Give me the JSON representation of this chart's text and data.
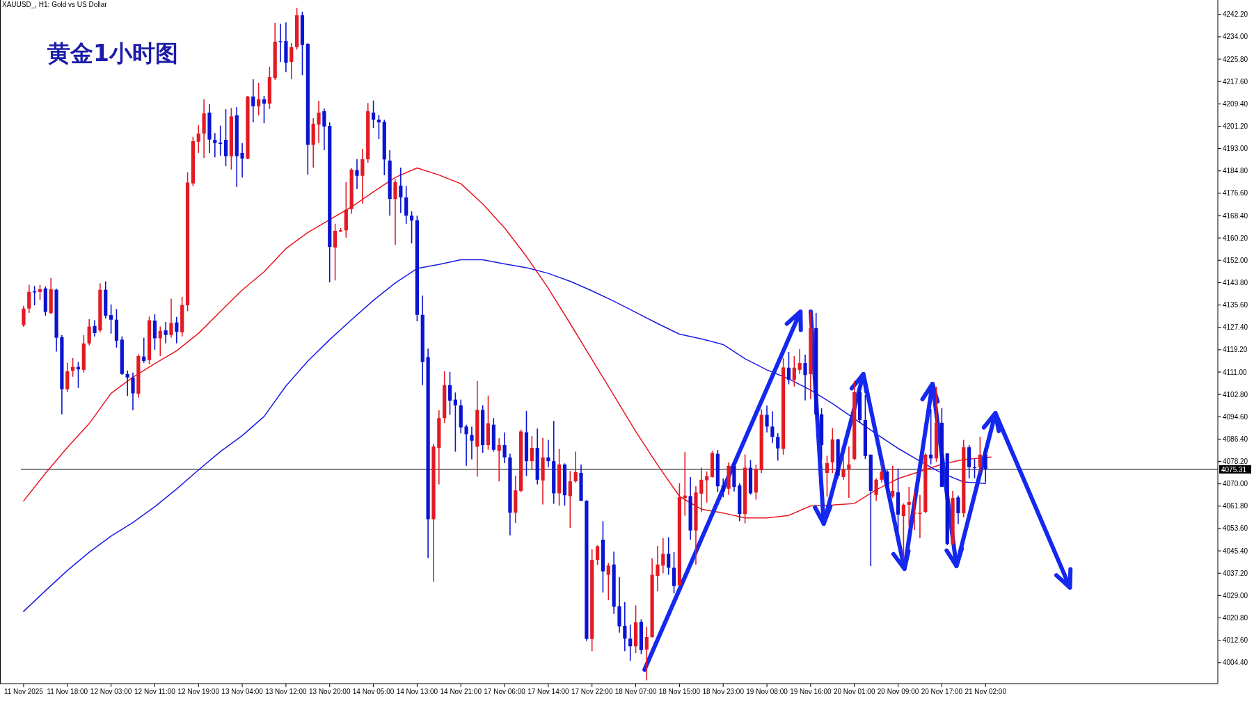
{
  "chart_data": {
    "type": "candlestick",
    "title": "黄金1小时图",
    "subtitle": "XAUUSD_, H1: Gold vs US Dollar",
    "categories": [
      "11 Nov 2025",
      null,
      null,
      null,
      null,
      null,
      null,
      null,
      "11 Nov 18:00",
      null,
      null,
      null,
      null,
      null,
      null,
      null,
      "12 Nov 03:00",
      null,
      null,
      null,
      null,
      null,
      null,
      null,
      "12 Nov 11:00",
      null,
      null,
      null,
      null,
      null,
      null,
      null,
      "12 Nov 19:00",
      null,
      null,
      null,
      null,
      null,
      null,
      null,
      "13 Nov 04:00",
      null,
      null,
      null,
      null,
      null,
      null,
      null,
      "13 Nov 12:00",
      null,
      null,
      null,
      null,
      null,
      null,
      null,
      "13 Nov 20:00",
      null,
      null,
      null,
      null,
      null,
      null,
      null,
      "14 Nov 05:00",
      null,
      null,
      null,
      null,
      null,
      null,
      null,
      "14 Nov 13:00",
      null,
      null,
      null,
      null,
      null,
      null,
      null,
      "14 Nov 21:00",
      null,
      null,
      null,
      null,
      null,
      null,
      null,
      "17 Nov 06:00",
      null,
      null,
      null,
      null,
      null,
      null,
      null,
      "17 Nov 14:00",
      null,
      null,
      null,
      null,
      null,
      null,
      null,
      "17 Nov 22:00",
      null,
      null,
      null,
      null,
      null,
      null,
      null,
      "18 Nov 07:00",
      null,
      null,
      null,
      null,
      null,
      null,
      null,
      "18 Nov 15:00",
      null,
      null,
      null,
      null,
      null,
      null,
      null,
      "18 Nov 23:00",
      null,
      null,
      null,
      null,
      null,
      null,
      null,
      "19 Nov 08:00",
      null,
      null,
      null,
      null,
      null,
      null,
      null,
      "19 Nov 16:00",
      null,
      null,
      null,
      null,
      null,
      null,
      null,
      "20 Nov 01:00",
      null,
      null,
      null,
      null,
      null,
      null,
      null,
      "20 Nov 09:00",
      null,
      null,
      null,
      null,
      null,
      null,
      null,
      "20 Nov 17:00",
      null,
      null,
      null,
      null,
      null,
      null,
      null,
      "21 Nov 02:00",
      null,
      null,
      null,
      null,
      null,
      null,
      null,
      null,
      null,
      null,
      null,
      null,
      null,
      null,
      null,
      null,
      null,
      null,
      null,
      null,
      null,
      null,
      null,
      null,
      null,
      null,
      null,
      null,
      null,
      null,
      null,
      null,
      null,
      null,
      null,
      null,
      null,
      null,
      null,
      null,
      null,
      null
    ],
    "ohlc": [
      [
        4128.2,
        4135.3,
        4127.6,
        4134.3
      ],
      [
        4134.3,
        4143.0,
        4132.7,
        4140.4
      ],
      [
        4140.6,
        4142.6,
        4135.5,
        4140.2
      ],
      [
        4140.4,
        4143.0,
        4137.5,
        4141.4
      ],
      [
        4141.7,
        4142.4,
        4131.7,
        4133.1
      ],
      [
        4132.7,
        4145.5,
        4132.2,
        4141.4
      ],
      [
        4141.2,
        4141.6,
        4118.5,
        4123.6
      ],
      [
        4123.8,
        4124.6,
        4095.5,
        4104.7
      ],
      [
        4104.7,
        4114.4,
        4103.7,
        4111.3
      ],
      [
        4111.5,
        4116.1,
        4109.3,
        4112.9
      ],
      [
        4112.9,
        4114.7,
        4105.2,
        4112.0
      ],
      [
        4111.8,
        4124.6,
        4110.8,
        4121.5
      ],
      [
        4121.5,
        4130.4,
        4120.8,
        4127.7
      ],
      [
        4127.9,
        4130.0,
        4124.1,
        4125.3
      ],
      [
        4126.3,
        4143.5,
        4125.6,
        4141.2
      ],
      [
        4141.2,
        4144.3,
        4130.7,
        4131.7
      ],
      [
        4131.9,
        4135.8,
        4125.1,
        4130.2
      ],
      [
        4130.2,
        4134.1,
        4120.0,
        4122.5
      ],
      [
        4122.9,
        4124.1,
        4110.0,
        4110.3
      ],
      [
        4110.3,
        4111.6,
        4102.2,
        4109.0
      ],
      [
        4109.0,
        4110.8,
        4097.0,
        4103.2
      ],
      [
        4103.0,
        4117.5,
        4101.6,
        4116.9
      ],
      [
        4116.7,
        4123.6,
        4114.4,
        4115.1
      ],
      [
        4115.4,
        4131.4,
        4113.9,
        4130.0
      ],
      [
        4129.9,
        4132.2,
        4119.2,
        4123.4
      ],
      [
        4123.4,
        4127.7,
        4116.9,
        4126.1
      ],
      [
        4126.3,
        4129.4,
        4121.5,
        4124.6
      ],
      [
        4124.6,
        4137.9,
        4123.6,
        4129.0
      ],
      [
        4129.2,
        4131.2,
        4121.5,
        4125.8
      ],
      [
        4125.6,
        4138.6,
        4124.1,
        4135.6
      ],
      [
        4135.5,
        4184.3,
        4133.3,
        4180.5
      ],
      [
        4180.2,
        4197.3,
        4179.2,
        4195.7
      ],
      [
        4195.5,
        4201.6,
        4191.4,
        4198.5
      ],
      [
        4198.5,
        4211.0,
        4189.6,
        4205.9
      ],
      [
        4206.2,
        4209.3,
        4191.4,
        4196.3
      ],
      [
        4196.2,
        4198.7,
        4189.8,
        4195.0
      ],
      [
        4195.2,
        4201.4,
        4190.4,
        4194.7
      ],
      [
        4196.2,
        4207.4,
        4186.5,
        4190.2
      ],
      [
        4190.2,
        4207.9,
        4185.3,
        4204.8
      ],
      [
        4205.2,
        4208.2,
        4178.9,
        4190.2
      ],
      [
        4191.4,
        4195.0,
        4182.4,
        4189.3
      ],
      [
        4189.3,
        4212.3,
        4189.1,
        4212.1
      ],
      [
        4212.1,
        4218.4,
        4202.6,
        4208.5
      ],
      [
        4208.5,
        4217.1,
        4205.2,
        4211.1
      ],
      [
        4211.1,
        4212.3,
        4202.3,
        4209.5
      ],
      [
        4209.5,
        4223.0,
        4207.5,
        4219.2
      ],
      [
        4218.9,
        4239.1,
        4218.2,
        4232.2
      ],
      [
        4232.4,
        4238.8,
        4224.8,
        4232.2
      ],
      [
        4232.4,
        4239.3,
        4221.0,
        4224.5
      ],
      [
        4224.8,
        4231.7,
        4218.4,
        4230.2
      ],
      [
        4230.2,
        4244.6,
        4229.3,
        4241.9
      ],
      [
        4241.9,
        4243.2,
        4219.9,
        4231.0
      ],
      [
        4231.4,
        4231.7,
        4183.4,
        4194.4
      ],
      [
        4194.4,
        4204.1,
        4186.0,
        4202.1
      ],
      [
        4201.8,
        4210.5,
        4195.0,
        4206.2
      ],
      [
        4206.7,
        4207.7,
        4192.4,
        4201.1
      ],
      [
        4201.3,
        4202.6,
        4143.9,
        4156.9
      ],
      [
        4156.7,
        4165.4,
        4144.6,
        4162.8
      ],
      [
        4162.6,
        4163.8,
        4162.3,
        4163.0
      ],
      [
        4163.0,
        4180.7,
        4160.3,
        4170.5
      ],
      [
        4170.8,
        4185.8,
        4169.1,
        4185.3
      ],
      [
        4185.1,
        4189.1,
        4178.1,
        4183.0
      ],
      [
        4183.0,
        4192.9,
        4172.8,
        4189.1
      ],
      [
        4189.1,
        4209.7,
        4187.8,
        4206.7
      ],
      [
        4206.2,
        4210.6,
        4200.6,
        4203.6
      ],
      [
        4203.6,
        4205.2,
        4196.5,
        4202.6
      ],
      [
        4202.8,
        4203.6,
        4183.2,
        4189.0
      ],
      [
        4188.6,
        4192.4,
        4168.4,
        4174.5
      ],
      [
        4174.5,
        4181.7,
        4157.7,
        4180.7
      ],
      [
        4179.4,
        4186.0,
        4169.4,
        4175.1
      ],
      [
        4175.1,
        4179.3,
        4165.4,
        4168.4
      ],
      [
        4168.4,
        4170.0,
        4158.2,
        4166.6
      ],
      [
        4166.7,
        4168.4,
        4129.6,
        4132.0
      ],
      [
        4132.0,
        4139.1,
        4106.2,
        4114.7
      ],
      [
        4116.5,
        4119.6,
        4042.8,
        4057.0
      ],
      [
        4057.0,
        4084.6,
        4034.1,
        4083.7
      ],
      [
        4083.2,
        4097.0,
        4069.8,
        4094.1
      ],
      [
        4094.1,
        4111.3,
        4092.4,
        4106.2
      ],
      [
        4106.2,
        4111.1,
        4095.3,
        4100.5
      ],
      [
        4100.9,
        4103.5,
        4081.8,
        4098.8
      ],
      [
        4098.8,
        4100.9,
        4088.5,
        4090.7
      ],
      [
        4091.0,
        4091.7,
        4076.6,
        4088.2
      ],
      [
        4087.9,
        4091.0,
        4079.0,
        4085.8
      ],
      [
        4083.6,
        4107.7,
        4072.6,
        4097.1
      ],
      [
        4097.1,
        4098.8,
        4081.4,
        4084.2
      ],
      [
        4084.2,
        4102.4,
        4082.5,
        4092.2
      ],
      [
        4091.7,
        4094.1,
        4081.8,
        4082.5
      ],
      [
        4082.1,
        4086.8,
        4070.9,
        4084.2
      ],
      [
        4084.2,
        4088.9,
        4077.6,
        4079.7
      ],
      [
        4079.7,
        4081.1,
        4051.1,
        4059.4
      ],
      [
        4059.4,
        4073.0,
        4055.6,
        4067.6
      ],
      [
        4067.4,
        4089.9,
        4066.9,
        4089.2
      ],
      [
        4088.9,
        4096.7,
        4072.9,
        4078.3
      ],
      [
        4078.3,
        4087.5,
        4075.4,
        4083.2
      ],
      [
        4083.2,
        4090.3,
        4069.8,
        4071.5
      ],
      [
        4071.2,
        4086.8,
        4062.4,
        4079.7
      ],
      [
        4079.7,
        4086.1,
        4076.1,
        4078.3
      ],
      [
        4078.3,
        4093.1,
        4062.7,
        4066.5
      ],
      [
        4066.5,
        4082.8,
        4062.0,
        4077.1
      ],
      [
        4077.1,
        4077.5,
        4062.0,
        4065.8
      ],
      [
        4065.5,
        4074.7,
        4053.8,
        4070.9
      ],
      [
        4070.9,
        4081.8,
        4070.5,
        4074.3
      ],
      [
        4074.0,
        4077.1,
        4063.7,
        4063.8
      ],
      [
        4063.8,
        4064.0,
        4012.4,
        4013.1
      ],
      [
        4013.1,
        4046.0,
        4008.6,
        4042.1
      ],
      [
        4042.1,
        4047.4,
        4040.3,
        4047.1
      ],
      [
        4049.5,
        4056.3,
        4030.1,
        4037.9
      ],
      [
        4036.6,
        4041.0,
        4027.3,
        4040.0
      ],
      [
        4040.4,
        4045.1,
        4022.3,
        4024.9
      ],
      [
        4025.1,
        4035.8,
        4015.4,
        4017.7
      ],
      [
        4017.9,
        4026.6,
        4008.6,
        4013.2
      ],
      [
        4013.2,
        4018.3,
        4005.1,
        4010.4
      ],
      [
        4010.4,
        4025.4,
        4007.9,
        4019.2
      ],
      [
        4019.4,
        4020.3,
        4007.5,
        4009.0
      ],
      [
        4009.2,
        4017.5,
        3997.9,
        4013.8
      ],
      [
        4013.8,
        4042.7,
        4013.6,
        4036.6
      ],
      [
        4036.2,
        4047.2,
        4030.6,
        4040.4
      ],
      [
        4040.0,
        4050.1,
        4037.2,
        4044.3
      ],
      [
        4044.3,
        4050.4,
        4036.6,
        4039.2
      ],
      [
        4039.2,
        4044.9,
        4029.8,
        4032.5
      ],
      [
        4032.8,
        4070.2,
        4032.6,
        4065.1
      ],
      [
        4064.8,
        4081.7,
        4058.3,
        4065.7
      ],
      [
        4065.5,
        4072.5,
        4049.5,
        4052.9
      ],
      [
        4052.9,
        4069.1,
        4040.4,
        4066.8
      ],
      [
        4066.4,
        4075.9,
        4059.6,
        4071.5
      ],
      [
        4071.3,
        4074.5,
        4063.1,
        4072.8
      ],
      [
        4072.5,
        4082.1,
        4072.3,
        4081.3
      ],
      [
        4081.0,
        4082.4,
        4067.0,
        4069.1
      ],
      [
        4069.4,
        4071.9,
        4065.1,
        4067.2
      ],
      [
        4068.2,
        4077.9,
        4066.0,
        4076.6
      ],
      [
        4076.6,
        4077.9,
        4067.2,
        4068.9
      ],
      [
        4069.4,
        4070.2,
        4056.3,
        4058.9
      ],
      [
        4058.9,
        4080.8,
        4055.5,
        4075.9
      ],
      [
        4075.9,
        4078.7,
        4066.0,
        4066.5
      ],
      [
        4066.8,
        4077.0,
        4064.2,
        4075.5
      ],
      [
        4075.0,
        4097.4,
        4074.0,
        4095.3
      ],
      [
        4095.3,
        4098.7,
        4088.9,
        4091.0
      ],
      [
        4091.0,
        4096.6,
        4084.9,
        4087.2
      ],
      [
        4087.2,
        4088.6,
        4078.5,
        4083.0
      ],
      [
        4082.8,
        4116.1,
        4080.7,
        4112.7
      ],
      [
        4112.6,
        4118.4,
        4106.5,
        4108.2
      ],
      [
        4108.2,
        4116.9,
        4105.7,
        4112.6
      ],
      [
        4111.8,
        4119.4,
        4110.3,
        4114.3
      ],
      [
        4114.3,
        4117.4,
        4100.6,
        4109.9
      ],
      [
        4110.2,
        4133.2,
        4101.1,
        4127.1
      ],
      [
        4127.1,
        4132.7,
        4093.4,
        4095.5
      ],
      [
        4095.5,
        4097.7,
        4079.1,
        4084.2
      ],
      [
        4074.0,
        4080.3,
        4065.3,
        4077.6
      ],
      [
        4077.9,
        4090.4,
        4074.0,
        4086.3
      ],
      [
        4086.3,
        4086.5,
        4072.0,
        4073.0
      ],
      [
        4072.5,
        4080.2,
        4071.5,
        4075.3
      ],
      [
        4075.3,
        4083.7,
        4064.8,
        4077.1
      ],
      [
        4079.1,
        4107.7,
        4078.6,
        4103.6
      ],
      [
        4103.6,
        4105.7,
        4092.4,
        4093.4
      ],
      [
        4093.4,
        4102.6,
        4079.1,
        4080.2
      ],
      [
        4080.7,
        4080.7,
        4039.8,
        4067.4
      ],
      [
        4065.9,
        4072.0,
        4063.8,
        4071.5
      ],
      [
        4071.5,
        4078.1,
        4070.5,
        4074.5
      ],
      [
        4074.5,
        4075.0,
        4065.9,
        4068.9
      ],
      [
        4065.4,
        4076.6,
        4064.8,
        4067.4
      ],
      [
        4066.9,
        4075.6,
        4052.6,
        4058.7
      ],
      [
        4058.2,
        4062.8,
        4042.4,
        4062.3
      ],
      [
        4062.3,
        4068.9,
        4054.6,
        4063.3
      ],
      [
        4059.0,
        4066.9,
        4053.1,
        4059.4
      ],
      [
        4059.0,
        4065.9,
        4050.0,
        4059.4
      ],
      [
        4059.7,
        4081.2,
        4059.2,
        4080.7
      ],
      [
        4080.7,
        4097.5,
        4077.1,
        4079.3
      ],
      [
        4079.3,
        4105.7,
        4078.1,
        4092.4
      ],
      [
        4092.4,
        4097.7,
        4068.9,
        4068.9
      ],
      [
        4081.2,
        4081.2,
        4047.5,
        4048.0
      ],
      [
        4048.0,
        4067.4,
        4047.5,
        4064.8
      ],
      [
        4065.0,
        4065.7,
        4055.2,
        4059.2
      ],
      [
        4059.2,
        4086.1,
        4057.7,
        4083.4
      ],
      [
        4083.4,
        4084.2,
        4072.0,
        4076.1
      ],
      [
        4076.1,
        4079.1,
        4072.0,
        4075.9
      ],
      [
        4076.1,
        4087.3,
        4074.0,
        4080.7
      ],
      [
        4080.7,
        4083.2,
        4070.5,
        4075.3
      ],
      null,
      null,
      null,
      null,
      null,
      null,
      null,
      null,
      null,
      null,
      null,
      null,
      null,
      null,
      null,
      null,
      null,
      null,
      null,
      null,
      null,
      null,
      null,
      null,
      null,
      null,
      null,
      null,
      null,
      null,
      null,
      null,
      null,
      null,
      null,
      null,
      null,
      null,
      null,
      null,
      null,
      null
    ],
    "colors": [
      "#e31a23",
      "#e31a23",
      "#0a14d2",
      "#e31a23",
      "#0a14d2",
      "#e31a23",
      "#0a14d2",
      "#0a14d2",
      "#e31a23",
      "#e31a23",
      "#0a14d2",
      "#e31a23",
      "#e31a23",
      "#0a14d2",
      "#e31a23",
      "#0a14d2",
      "#0a14d2",
      "#0a14d2",
      "#0a14d2",
      "#0a14d2",
      "#0a14d2",
      "#e31a23",
      "#0a14d2",
      "#e31a23",
      "#0a14d2",
      "#e31a23",
      "#0a14d2",
      "#e31a23",
      "#0a14d2",
      "#e31a23",
      "#e31a23",
      "#e31a23",
      "#e31a23",
      "#e31a23",
      "#0a14d2",
      "#0a14d2",
      "#0a14d2",
      "#0a14d2",
      "#e31a23",
      "#0a14d2",
      "#0a14d2",
      "#e31a23",
      "#0a14d2",
      "#e31a23",
      "#0a14d2",
      "#e31a23",
      "#e31a23",
      "#0a14d2",
      "#0a14d2",
      "#e31a23",
      "#e31a23",
      "#0a14d2",
      "#0a14d2",
      "#e31a23",
      "#e31a23",
      "#0a14d2",
      "#0a14d2",
      "#e31a23",
      "#e31a23",
      "#e31a23",
      "#e31a23",
      "#0a14d2",
      "#e31a23",
      "#e31a23",
      "#0a14d2",
      "#0a14d2",
      "#0a14d2",
      "#0a14d2",
      "#e31a23",
      "#0a14d2",
      "#0a14d2",
      "#0a14d2",
      "#0a14d2",
      "#0a14d2",
      "#0a14d2",
      "#e31a23",
      "#e31a23",
      "#e31a23",
      "#0a14d2",
      "#0a14d2",
      "#0a14d2",
      "#0a14d2",
      "#0a14d2",
      "#e31a23",
      "#0a14d2",
      "#e31a23",
      "#0a14d2",
      "#e31a23",
      "#0a14d2",
      "#0a14d2",
      "#e31a23",
      "#e31a23",
      "#0a14d2",
      "#e31a23",
      "#0a14d2",
      "#e31a23",
      "#0a14d2",
      "#0a14d2",
      "#e31a23",
      "#0a14d2",
      "#e31a23",
      "#e31a23",
      "#0a14d2",
      "#0a14d2",
      "#e31a23",
      "#e31a23",
      "#0a14d2",
      "#e31a23",
      "#0a14d2",
      "#0a14d2",
      "#0a14d2",
      "#0a14d2",
      "#e31a23",
      "#0a14d2",
      "#e31a23",
      "#e31a23",
      "#e31a23",
      "#e31a23",
      "#0a14d2",
      "#0a14d2",
      "#e31a23",
      "#e31a23",
      "#0a14d2",
      "#e31a23",
      "#e31a23",
      "#e31a23",
      "#e31a23",
      "#0a14d2",
      "#0a14d2",
      "#e31a23",
      "#0a14d2",
      "#0a14d2",
      "#e31a23",
      "#0a14d2",
      "#e31a23",
      "#e31a23",
      "#0a14d2",
      "#0a14d2",
      "#0a14d2",
      "#e31a23",
      "#0a14d2",
      "#e31a23",
      "#e31a23",
      "#0a14d2",
      "#e31a23",
      "#0a14d2",
      "#0a14d2",
      "#e31a23",
      "#e31a23",
      "#0a14d2",
      "#e31a23",
      "#e31a23",
      "#e31a23",
      "#0a14d2",
      "#0a14d2",
      "#0a14d2",
      "#e31a23",
      "#e31a23",
      "#0a14d2",
      "#e31a23",
      "#0a14d2",
      "#e31a23",
      "#e31a23",
      "#e31a23",
      "#e31a23",
      "#e31a23",
      "#0a14d2",
      "#e31a23",
      "#0a14d2",
      "#0a14d2",
      "#e31a23",
      "#0a14d2",
      "#e31a23",
      "#0a14d2",
      "#0a14d2",
      "#e31a23",
      "#0a14d2",
      null,
      null,
      null,
      null,
      null,
      null,
      null,
      null,
      null,
      null,
      null,
      null,
      null,
      null,
      null,
      null,
      null,
      null,
      null,
      null,
      null,
      null,
      null,
      null,
      null,
      null,
      null,
      null,
      null,
      null,
      null,
      null,
      null,
      null,
      null,
      null,
      null,
      null,
      null,
      null,
      null,
      null
    ],
    "series": [
      {
        "type": "line",
        "color": "#e8141e",
        "values": [
          4063.7,
          null,
          null,
          null,
          4073.9,
          null,
          null,
          null,
          4083.3,
          null,
          null,
          null,
          4092.1,
          null,
          null,
          null,
          4103.2,
          null,
          null,
          null,
          4109.1,
          null,
          null,
          null,
          4114.1,
          null,
          null,
          null,
          4118.8,
          null,
          null,
          null,
          4125.2,
          null,
          null,
          null,
          4133.2,
          null,
          null,
          null,
          4141.1,
          null,
          null,
          null,
          4147.8,
          null,
          null,
          null,
          4156.3,
          null,
          null,
          null,
          4162.2,
          null,
          null,
          null,
          4166.9,
          null,
          null,
          null,
          4171.6,
          null,
          null,
          null,
          4177.1,
          null,
          null,
          null,
          4182.4,
          null,
          null,
          null,
          4185.9,
          null,
          null,
          null,
          4183.3,
          null,
          null,
          null,
          4180.1,
          null,
          null,
          null,
          4172.7,
          null,
          null,
          null,
          4163.9,
          null,
          null,
          null,
          4153.4,
          null,
          null,
          null,
          4141.7,
          null,
          null,
          null,
          4128.8,
          null,
          null,
          null,
          4115.6,
          null,
          null,
          null,
          4102.4,
          null,
          null,
          null,
          4089.2,
          null,
          null,
          null,
          4076.9,
          null,
          null,
          null,
          4065.4,
          null,
          null,
          null,
          4060.7,
          null,
          null,
          null,
          4059.3,
          null,
          null,
          null,
          4057.5,
          null,
          null,
          null,
          4057.5,
          null,
          null,
          null,
          4058.4,
          null,
          null,
          null,
          4061.9,
          null,
          null,
          null,
          4062.2,
          null,
          null,
          null,
          4062.8,
          null,
          null,
          null,
          4067.8,
          null,
          null,
          null,
          4071.9,
          null,
          null,
          null,
          4074.5,
          null,
          null,
          null,
          4077.2,
          null,
          null,
          null,
          4078.9,
          null,
          null,
          null,
          null,
          4079.8,
          null,
          null,
          null,
          null,
          null,
          null,
          null,
          null,
          null,
          null,
          null,
          null,
          null,
          null,
          null,
          null,
          null,
          null,
          null,
          null,
          null,
          null,
          null,
          null,
          null,
          null,
          null,
          null,
          null,
          null,
          null,
          null,
          null,
          null,
          null,
          null,
          null,
          null,
          null,
          null,
          null
        ]
      },
      {
        "type": "line",
        "color": "#1a1ae6",
        "values": [
          4023.2,
          null,
          null,
          null,
          4030.8,
          null,
          null,
          null,
          4038.2,
          null,
          null,
          null,
          4044.9,
          null,
          null,
          null,
          4050.8,
          null,
          null,
          null,
          4055.8,
          null,
          null,
          null,
          4061.6,
          null,
          null,
          null,
          4068.1,
          null,
          null,
          null,
          4075.1,
          null,
          null,
          null,
          4081.8,
          null,
          null,
          null,
          4087.7,
          null,
          null,
          null,
          4094.7,
          null,
          null,
          null,
          4105.9,
          null,
          null,
          null,
          4115.0,
          null,
          null,
          null,
          4122.9,
          null,
          null,
          null,
          4130.2,
          null,
          null,
          null,
          4137.3,
          null,
          null,
          null,
          4143.7,
          null,
          null,
          null,
          4149.0,
          null,
          null,
          null,
          4150.5,
          null,
          null,
          null,
          4152.2,
          null,
          null,
          null,
          4152.2,
          null,
          null,
          null,
          4150.7,
          null,
          null,
          null,
          4149.3,
          null,
          null,
          null,
          4147.2,
          null,
          null,
          null,
          4144.3,
          null,
          null,
          null,
          4140.8,
          null,
          null,
          null,
          4137.0,
          null,
          null,
          null,
          4132.9,
          null,
          null,
          null,
          4128.8,
          null,
          null,
          null,
          4124.9,
          null,
          null,
          null,
          4123.2,
          null,
          null,
          null,
          4121.1,
          null,
          null,
          null,
          4115.9,
          null,
          null,
          null,
          4111.8,
          null,
          null,
          null,
          4108.5,
          null,
          null,
          null,
          4104.4,
          null,
          null,
          null,
          4099.4,
          null,
          null,
          null,
          4093.9,
          null,
          null,
          null,
          4088.3,
          null,
          null,
          null,
          4083.0,
          null,
          null,
          null,
          4078.3,
          null,
          null,
          null,
          4073.9,
          null,
          null,
          null,
          4070.7,
          null,
          null,
          null,
          4070.1,
          null,
          null,
          null,
          null,
          null,
          null,
          null,
          null,
          null,
          null,
          null,
          null,
          null,
          null,
          null,
          null,
          null,
          null,
          null,
          null,
          null,
          null,
          null,
          null,
          null,
          null,
          null,
          null,
          null,
          null,
          null,
          null,
          null,
          null,
          null,
          null,
          null,
          null,
          null,
          null,
          null,
          null
        ]
      }
    ],
    "ylim": [
      3996.7,
      4247.5
    ],
    "yticks": [
      {
        "value": 4004.4,
        "label": "4004.40"
      },
      {
        "value": 4012.6,
        "label": "4012.60"
      },
      {
        "value": 4020.8,
        "label": "4020.80"
      },
      {
        "value": 4029.0,
        "label": "4029.00"
      },
      {
        "value": 4037.2,
        "label": "4037.20"
      },
      {
        "value": 4045.4,
        "label": "4045.40"
      },
      {
        "value": 4053.6,
        "label": "4053.60"
      },
      {
        "value": 4061.8,
        "label": "4061.80"
      },
      {
        "value": 4070.0,
        "label": "4070.00"
      },
      {
        "value": 4078.2,
        "label": "4078.20"
      },
      {
        "value": 4086.4,
        "label": "4086.40"
      },
      {
        "value": 4094.6,
        "label": "4094.60"
      },
      {
        "value": 4102.8,
        "label": "4102.80"
      },
      {
        "value": 4111.0,
        "label": "4111.00"
      },
      {
        "value": 4119.2,
        "label": "4119.20"
      },
      {
        "value": 4127.4,
        "label": "4127.40"
      },
      {
        "value": 4135.6,
        "label": "4135.60"
      },
      {
        "value": 4143.8,
        "label": "4143.80"
      },
      {
        "value": 4152.0,
        "label": "4152.00"
      },
      {
        "value": 4160.2,
        "label": "4160.20"
      },
      {
        "value": 4168.4,
        "label": "4168.40"
      },
      {
        "value": 4176.6,
        "label": "4176.60"
      },
      {
        "value": 4184.8,
        "label": "4184.80"
      },
      {
        "value": 4193.0,
        "label": "4193.00"
      },
      {
        "value": 4201.2,
        "label": "4201.20"
      },
      {
        "value": 4209.4,
        "label": "4209.40"
      },
      {
        "value": 4217.6,
        "label": "4217.60"
      },
      {
        "value": 4225.8,
        "label": "4225.80"
      },
      {
        "value": 4234.0,
        "label": "4234.00"
      },
      {
        "value": 4242.2,
        "label": "4242.20"
      }
    ],
    "ref_lines": [
      {
        "axis": "y",
        "value": 4075.31,
        "label": "4075.31",
        "color": "#000000"
      }
    ]
  }
}
